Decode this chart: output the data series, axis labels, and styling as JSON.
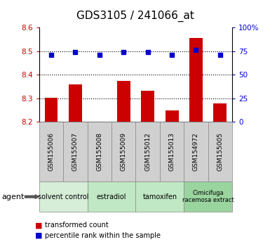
{
  "title": "GDS3105 / 241066_at",
  "samples": [
    "GSM155006",
    "GSM155007",
    "GSM155008",
    "GSM155009",
    "GSM155012",
    "GSM155013",
    "GSM154972",
    "GSM155005"
  ],
  "bar_values": [
    8.302,
    8.358,
    8.202,
    8.375,
    8.333,
    8.248,
    8.555,
    8.278
  ],
  "percentile_values": [
    71,
    74,
    71,
    74,
    74,
    71,
    76,
    71
  ],
  "bar_color": "#cc0000",
  "dot_color": "#0000cc",
  "ylim_left": [
    8.2,
    8.6
  ],
  "ylim_right": [
    0,
    100
  ],
  "yticks_left": [
    8.2,
    8.3,
    8.4,
    8.5,
    8.6
  ],
  "yticks_right": [
    0,
    25,
    50,
    75,
    100
  ],
  "ytick_labels_right": [
    "0",
    "25",
    "50",
    "75",
    "100%"
  ],
  "groups": [
    {
      "label": "solvent control",
      "start": 0,
      "end": 2,
      "color": "#d6edd8"
    },
    {
      "label": "estradiol",
      "start": 2,
      "end": 4,
      "color": "#c0e8c4"
    },
    {
      "label": "tamoxifen",
      "start": 4,
      "end": 6,
      "color": "#c0e8c4"
    },
    {
      "label": "Cimicifuga\nracemosa extract",
      "start": 6,
      "end": 8,
      "color": "#9ad49f"
    }
  ],
  "legend_red_label": "transformed count",
  "legend_blue_label": "percentile rank within the sample",
  "agent_label": "agent",
  "background_color": "#ffffff",
  "plot_bg_color": "#ffffff",
  "tick_label_color_left": "#cc0000",
  "tick_label_color_right": "#0000cc",
  "bar_bottom": 8.2,
  "title_fontsize": 11,
  "gridline_ticks": [
    8.3,
    8.4,
    8.5
  ],
  "sample_box_color": "#d0d0d0"
}
